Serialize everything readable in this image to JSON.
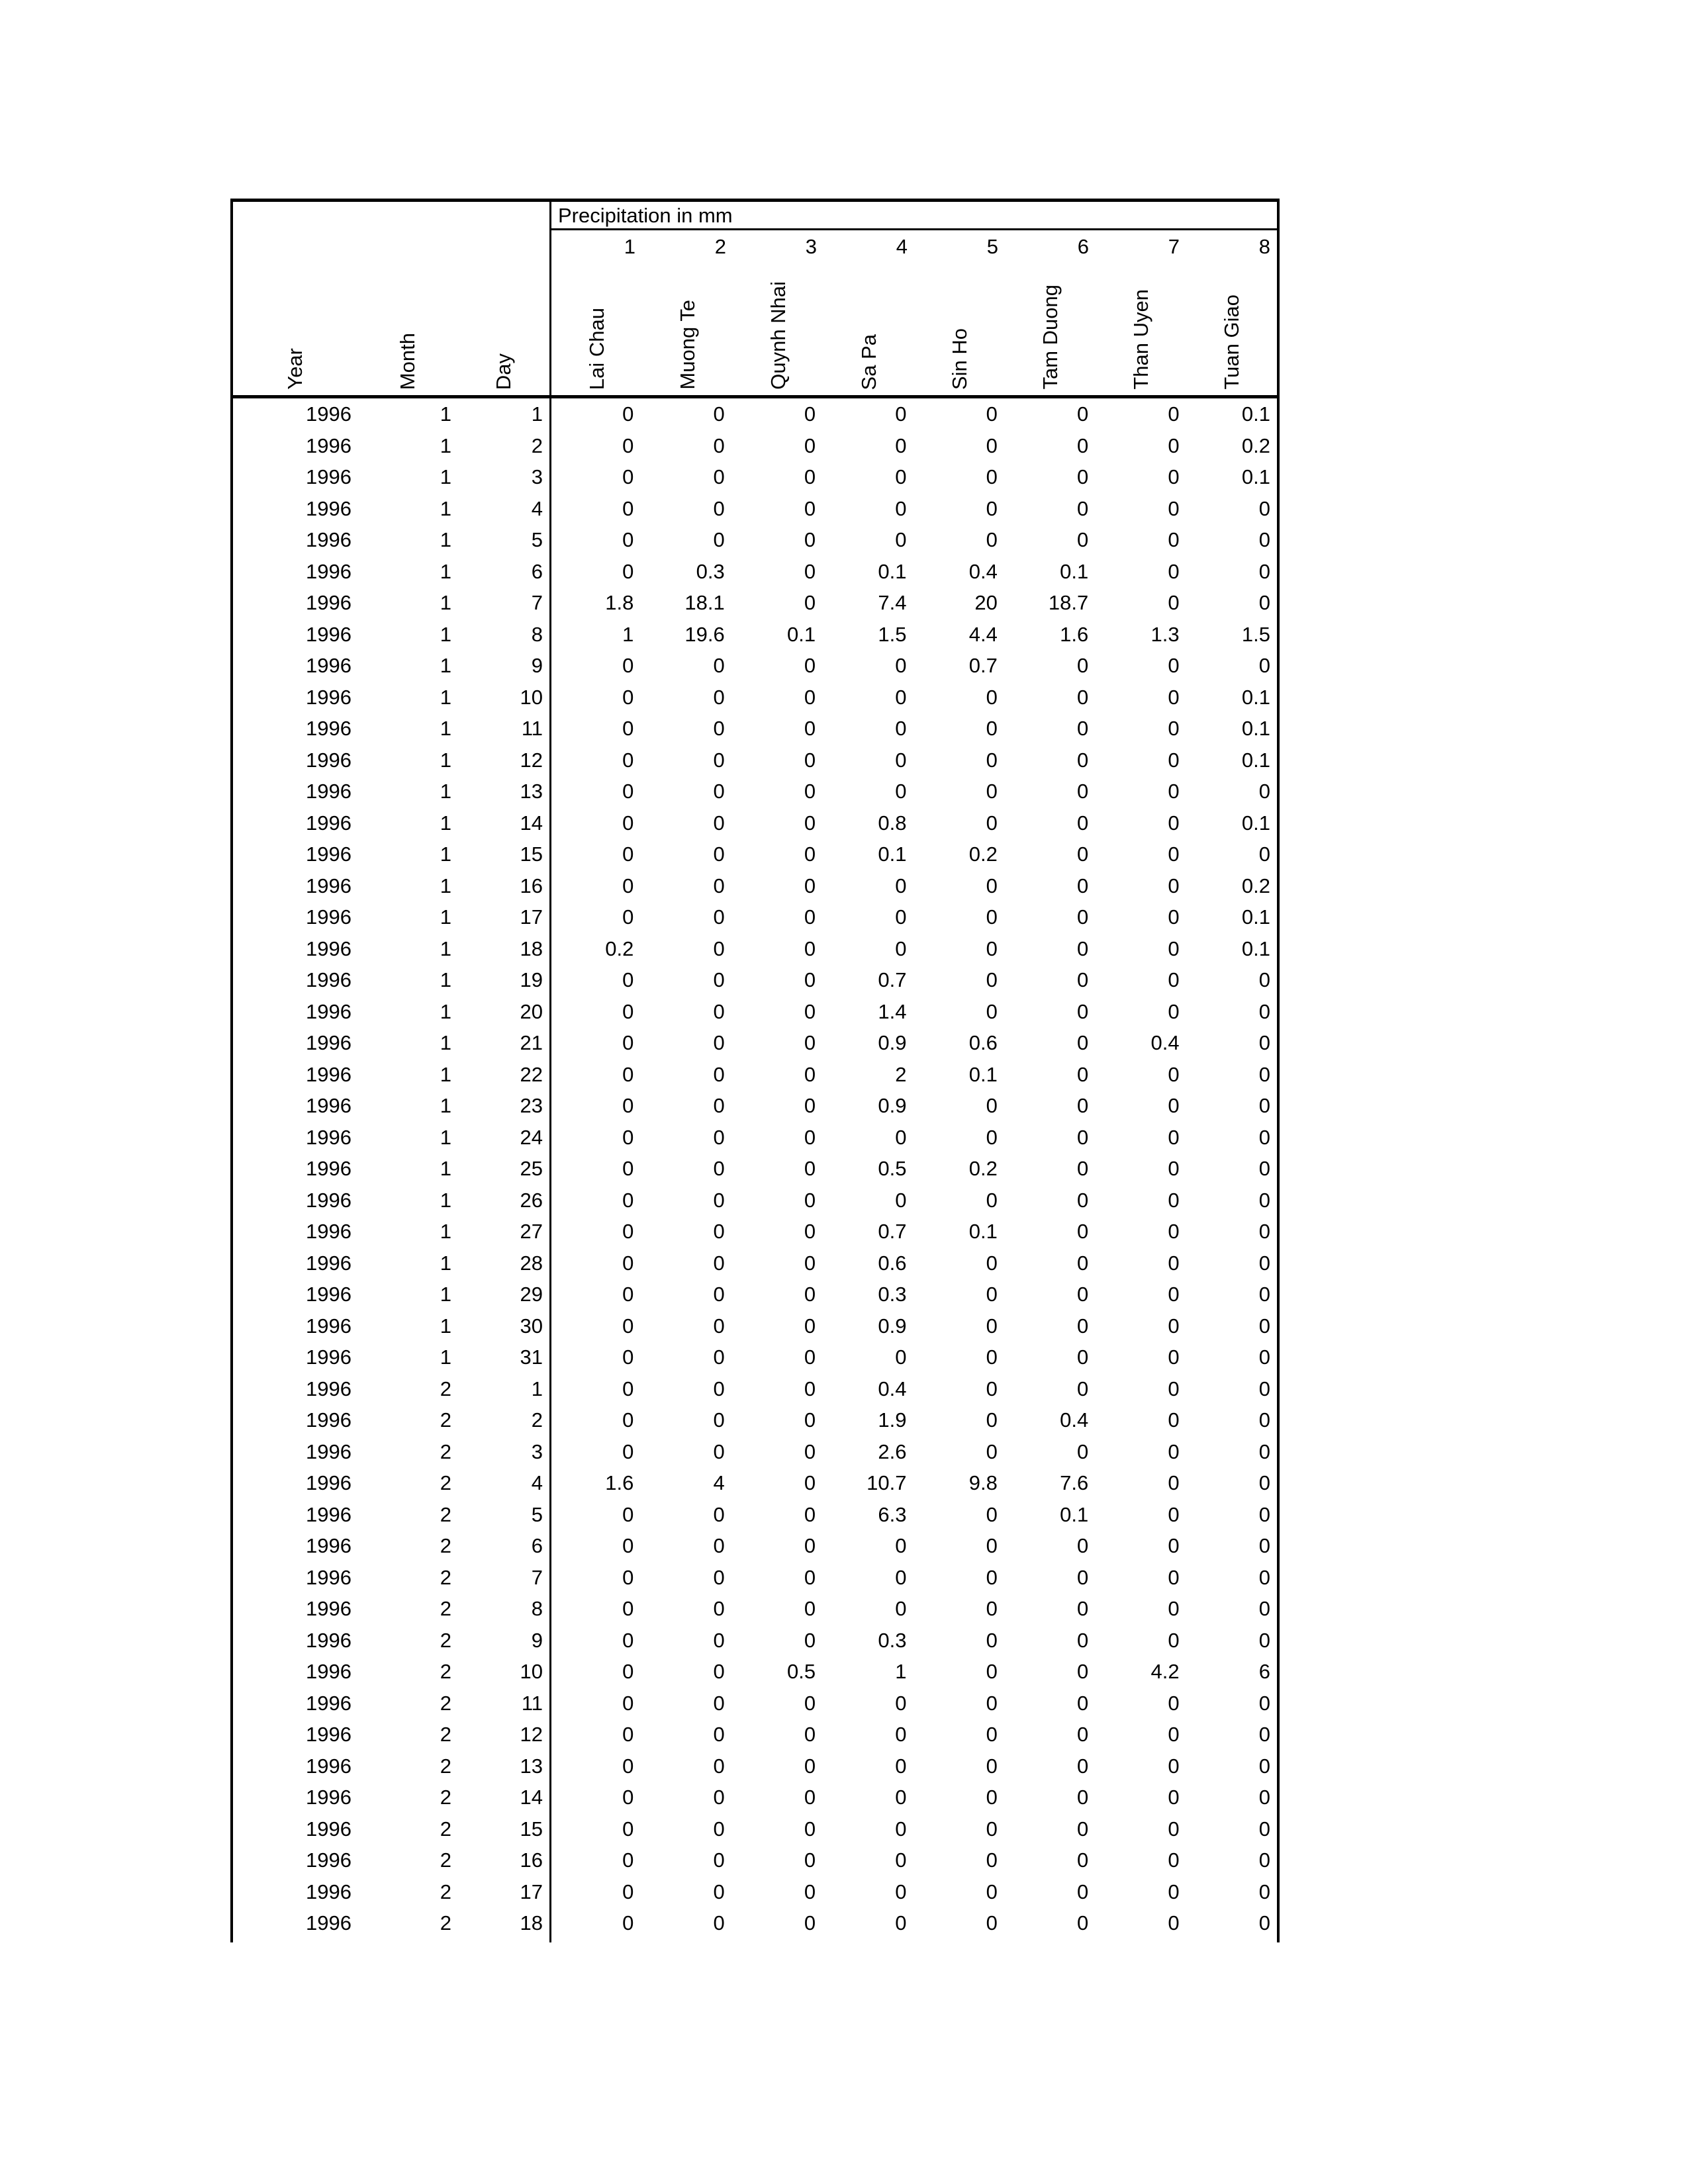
{
  "table": {
    "title": "Precipitation in mm",
    "id_headers": [
      "Year",
      "Month",
      "Day"
    ],
    "station_numbers": [
      "1",
      "2",
      "3",
      "4",
      "5",
      "6",
      "7",
      "8"
    ],
    "stations": [
      "Lai Chau",
      "Muong Te",
      "Quynh Nhai",
      "Sa Pa",
      "Sin Ho",
      "Tam Duong",
      "Than Uyen",
      "Tuan Giao"
    ],
    "rows": [
      [
        "1996",
        "1",
        "1",
        "0",
        "0",
        "0",
        "0",
        "0",
        "0",
        "0",
        "0.1"
      ],
      [
        "1996",
        "1",
        "2",
        "0",
        "0",
        "0",
        "0",
        "0",
        "0",
        "0",
        "0.2"
      ],
      [
        "1996",
        "1",
        "3",
        "0",
        "0",
        "0",
        "0",
        "0",
        "0",
        "0",
        "0.1"
      ],
      [
        "1996",
        "1",
        "4",
        "0",
        "0",
        "0",
        "0",
        "0",
        "0",
        "0",
        "0"
      ],
      [
        "1996",
        "1",
        "5",
        "0",
        "0",
        "0",
        "0",
        "0",
        "0",
        "0",
        "0"
      ],
      [
        "1996",
        "1",
        "6",
        "0",
        "0.3",
        "0",
        "0.1",
        "0.4",
        "0.1",
        "0",
        "0"
      ],
      [
        "1996",
        "1",
        "7",
        "1.8",
        "18.1",
        "0",
        "7.4",
        "20",
        "18.7",
        "0",
        "0"
      ],
      [
        "1996",
        "1",
        "8",
        "1",
        "19.6",
        "0.1",
        "1.5",
        "4.4",
        "1.6",
        "1.3",
        "1.5"
      ],
      [
        "1996",
        "1",
        "9",
        "0",
        "0",
        "0",
        "0",
        "0.7",
        "0",
        "0",
        "0"
      ],
      [
        "1996",
        "1",
        "10",
        "0",
        "0",
        "0",
        "0",
        "0",
        "0",
        "0",
        "0.1"
      ],
      [
        "1996",
        "1",
        "11",
        "0",
        "0",
        "0",
        "0",
        "0",
        "0",
        "0",
        "0.1"
      ],
      [
        "1996",
        "1",
        "12",
        "0",
        "0",
        "0",
        "0",
        "0",
        "0",
        "0",
        "0.1"
      ],
      [
        "1996",
        "1",
        "13",
        "0",
        "0",
        "0",
        "0",
        "0",
        "0",
        "0",
        "0"
      ],
      [
        "1996",
        "1",
        "14",
        "0",
        "0",
        "0",
        "0.8",
        "0",
        "0",
        "0",
        "0.1"
      ],
      [
        "1996",
        "1",
        "15",
        "0",
        "0",
        "0",
        "0.1",
        "0.2",
        "0",
        "0",
        "0"
      ],
      [
        "1996",
        "1",
        "16",
        "0",
        "0",
        "0",
        "0",
        "0",
        "0",
        "0",
        "0.2"
      ],
      [
        "1996",
        "1",
        "17",
        "0",
        "0",
        "0",
        "0",
        "0",
        "0",
        "0",
        "0.1"
      ],
      [
        "1996",
        "1",
        "18",
        "0.2",
        "0",
        "0",
        "0",
        "0",
        "0",
        "0",
        "0.1"
      ],
      [
        "1996",
        "1",
        "19",
        "0",
        "0",
        "0",
        "0.7",
        "0",
        "0",
        "0",
        "0"
      ],
      [
        "1996",
        "1",
        "20",
        "0",
        "0",
        "0",
        "1.4",
        "0",
        "0",
        "0",
        "0"
      ],
      [
        "1996",
        "1",
        "21",
        "0",
        "0",
        "0",
        "0.9",
        "0.6",
        "0",
        "0.4",
        "0"
      ],
      [
        "1996",
        "1",
        "22",
        "0",
        "0",
        "0",
        "2",
        "0.1",
        "0",
        "0",
        "0"
      ],
      [
        "1996",
        "1",
        "23",
        "0",
        "0",
        "0",
        "0.9",
        "0",
        "0",
        "0",
        "0"
      ],
      [
        "1996",
        "1",
        "24",
        "0",
        "0",
        "0",
        "0",
        "0",
        "0",
        "0",
        "0"
      ],
      [
        "1996",
        "1",
        "25",
        "0",
        "0",
        "0",
        "0.5",
        "0.2",
        "0",
        "0",
        "0"
      ],
      [
        "1996",
        "1",
        "26",
        "0",
        "0",
        "0",
        "0",
        "0",
        "0",
        "0",
        "0"
      ],
      [
        "1996",
        "1",
        "27",
        "0",
        "0",
        "0",
        "0.7",
        "0.1",
        "0",
        "0",
        "0"
      ],
      [
        "1996",
        "1",
        "28",
        "0",
        "0",
        "0",
        "0.6",
        "0",
        "0",
        "0",
        "0"
      ],
      [
        "1996",
        "1",
        "29",
        "0",
        "0",
        "0",
        "0.3",
        "0",
        "0",
        "0",
        "0"
      ],
      [
        "1996",
        "1",
        "30",
        "0",
        "0",
        "0",
        "0.9",
        "0",
        "0",
        "0",
        "0"
      ],
      [
        "1996",
        "1",
        "31",
        "0",
        "0",
        "0",
        "0",
        "0",
        "0",
        "0",
        "0"
      ],
      [
        "1996",
        "2",
        "1",
        "0",
        "0",
        "0",
        "0.4",
        "0",
        "0",
        "0",
        "0"
      ],
      [
        "1996",
        "2",
        "2",
        "0",
        "0",
        "0",
        "1.9",
        "0",
        "0.4",
        "0",
        "0"
      ],
      [
        "1996",
        "2",
        "3",
        "0",
        "0",
        "0",
        "2.6",
        "0",
        "0",
        "0",
        "0"
      ],
      [
        "1996",
        "2",
        "4",
        "1.6",
        "4",
        "0",
        "10.7",
        "9.8",
        "7.6",
        "0",
        "0"
      ],
      [
        "1996",
        "2",
        "5",
        "0",
        "0",
        "0",
        "6.3",
        "0",
        "0.1",
        "0",
        "0"
      ],
      [
        "1996",
        "2",
        "6",
        "0",
        "0",
        "0",
        "0",
        "0",
        "0",
        "0",
        "0"
      ],
      [
        "1996",
        "2",
        "7",
        "0",
        "0",
        "0",
        "0",
        "0",
        "0",
        "0",
        "0"
      ],
      [
        "1996",
        "2",
        "8",
        "0",
        "0",
        "0",
        "0",
        "0",
        "0",
        "0",
        "0"
      ],
      [
        "1996",
        "2",
        "9",
        "0",
        "0",
        "0",
        "0.3",
        "0",
        "0",
        "0",
        "0"
      ],
      [
        "1996",
        "2",
        "10",
        "0",
        "0",
        "0.5",
        "1",
        "0",
        "0",
        "4.2",
        "6"
      ],
      [
        "1996",
        "2",
        "11",
        "0",
        "0",
        "0",
        "0",
        "0",
        "0",
        "0",
        "0"
      ],
      [
        "1996",
        "2",
        "12",
        "0",
        "0",
        "0",
        "0",
        "0",
        "0",
        "0",
        "0"
      ],
      [
        "1996",
        "2",
        "13",
        "0",
        "0",
        "0",
        "0",
        "0",
        "0",
        "0",
        "0"
      ],
      [
        "1996",
        "2",
        "14",
        "0",
        "0",
        "0",
        "0",
        "0",
        "0",
        "0",
        "0"
      ],
      [
        "1996",
        "2",
        "15",
        "0",
        "0",
        "0",
        "0",
        "0",
        "0",
        "0",
        "0"
      ],
      [
        "1996",
        "2",
        "16",
        "0",
        "0",
        "0",
        "0",
        "0",
        "0",
        "0",
        "0"
      ],
      [
        "1996",
        "2",
        "17",
        "0",
        "0",
        "0",
        "0",
        "0",
        "0",
        "0",
        "0"
      ],
      [
        "1996",
        "2",
        "18",
        "0",
        "0",
        "0",
        "0",
        "0",
        "0",
        "0",
        "0"
      ]
    ]
  }
}
